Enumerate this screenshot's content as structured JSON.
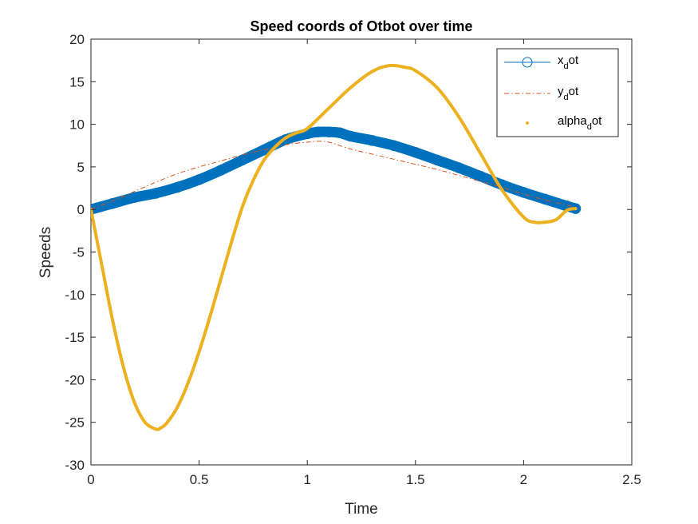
{
  "chart_data": {
    "type": "line",
    "title": "Speed coords of Otbot over time",
    "xlabel": "Time",
    "ylabel": "Speeds",
    "xlim": [
      0,
      2.5
    ],
    "ylim": [
      -30,
      20
    ],
    "xticks": [
      0,
      0.5,
      1,
      1.5,
      2,
      2.5
    ],
    "yticks": [
      -30,
      -25,
      -20,
      -15,
      -10,
      -5,
      0,
      5,
      10,
      15,
      20
    ],
    "xtick_labels": [
      "0",
      "0.5",
      "1",
      "1.5",
      "2",
      "2.5"
    ],
    "ytick_labels": [
      "-30",
      "-25",
      "-20",
      "-15",
      "-10",
      "-5",
      "0",
      "5",
      "10",
      "15",
      "20"
    ],
    "grid": false,
    "legend_position": "top-right",
    "series": [
      {
        "name": "x_dot",
        "legend_main": "x",
        "legend_sub": "d",
        "legend_tail": "ot",
        "style": "line-with-circle-markers",
        "color": "#0072BD",
        "x": [
          0,
          0.1,
          0.2,
          0.3,
          0.4,
          0.5,
          0.6,
          0.7,
          0.8,
          0.9,
          1.0,
          1.05,
          1.1,
          1.15,
          1.2,
          1.3,
          1.4,
          1.5,
          1.6,
          1.7,
          1.8,
          1.9,
          2.0,
          2.1,
          2.2,
          2.24
        ],
        "y": [
          0,
          0.7,
          1.4,
          1.9,
          2.6,
          3.5,
          4.6,
          5.8,
          7.0,
          8.2,
          8.9,
          9.1,
          9.1,
          9.0,
          8.6,
          8.1,
          7.5,
          6.7,
          5.8,
          4.9,
          3.9,
          2.9,
          2.0,
          1.2,
          0.4,
          0.1
        ]
      },
      {
        "name": "y_dot",
        "legend_main": "y",
        "legend_sub": "d",
        "legend_tail": "ot",
        "style": "dash-dot",
        "color": "#D95319",
        "x": [
          0,
          0.1,
          0.2,
          0.3,
          0.4,
          0.5,
          0.6,
          0.7,
          0.8,
          0.9,
          1.0,
          1.05,
          1.1,
          1.2,
          1.3,
          1.4,
          1.5,
          1.6,
          1.7,
          1.8,
          1.9,
          2.0,
          2.1,
          2.2,
          2.24
        ],
        "y": [
          0,
          1.0,
          2.1,
          3.2,
          4.2,
          5.0,
          5.7,
          6.4,
          7.0,
          7.6,
          7.9,
          8.0,
          7.9,
          7.1,
          6.5,
          5.9,
          5.3,
          4.7,
          4.0,
          3.3,
          2.6,
          1.8,
          1.1,
          0.5,
          0.2
        ]
      },
      {
        "name": "alpha_dot",
        "legend_main": "alpha",
        "legend_sub": "d",
        "legend_tail": "ot",
        "style": "thick-line-point-markers",
        "color": "#EDB120",
        "x": [
          0,
          0.05,
          0.1,
          0.15,
          0.2,
          0.25,
          0.3,
          0.32,
          0.35,
          0.4,
          0.45,
          0.5,
          0.55,
          0.6,
          0.65,
          0.7,
          0.75,
          0.8,
          0.85,
          0.9,
          0.95,
          1.0,
          1.1,
          1.2,
          1.3,
          1.38,
          1.45,
          1.5,
          1.6,
          1.7,
          1.8,
          1.9,
          2.0,
          2.05,
          2.1,
          2.15,
          2.2,
          2.24
        ],
        "y": [
          0,
          -6.5,
          -13.0,
          -18.5,
          -22.6,
          -25.0,
          -25.8,
          -25.7,
          -25.1,
          -23.2,
          -20.3,
          -16.7,
          -12.6,
          -8.2,
          -3.8,
          0.3,
          3.4,
          5.8,
          7.3,
          8.4,
          9.0,
          9.5,
          11.9,
          14.3,
          16.2,
          16.9,
          16.7,
          16.3,
          14.3,
          10.9,
          6.6,
          2.3,
          -0.9,
          -1.5,
          -1.5,
          -1.2,
          -0.1,
          0.1
        ]
      }
    ]
  }
}
